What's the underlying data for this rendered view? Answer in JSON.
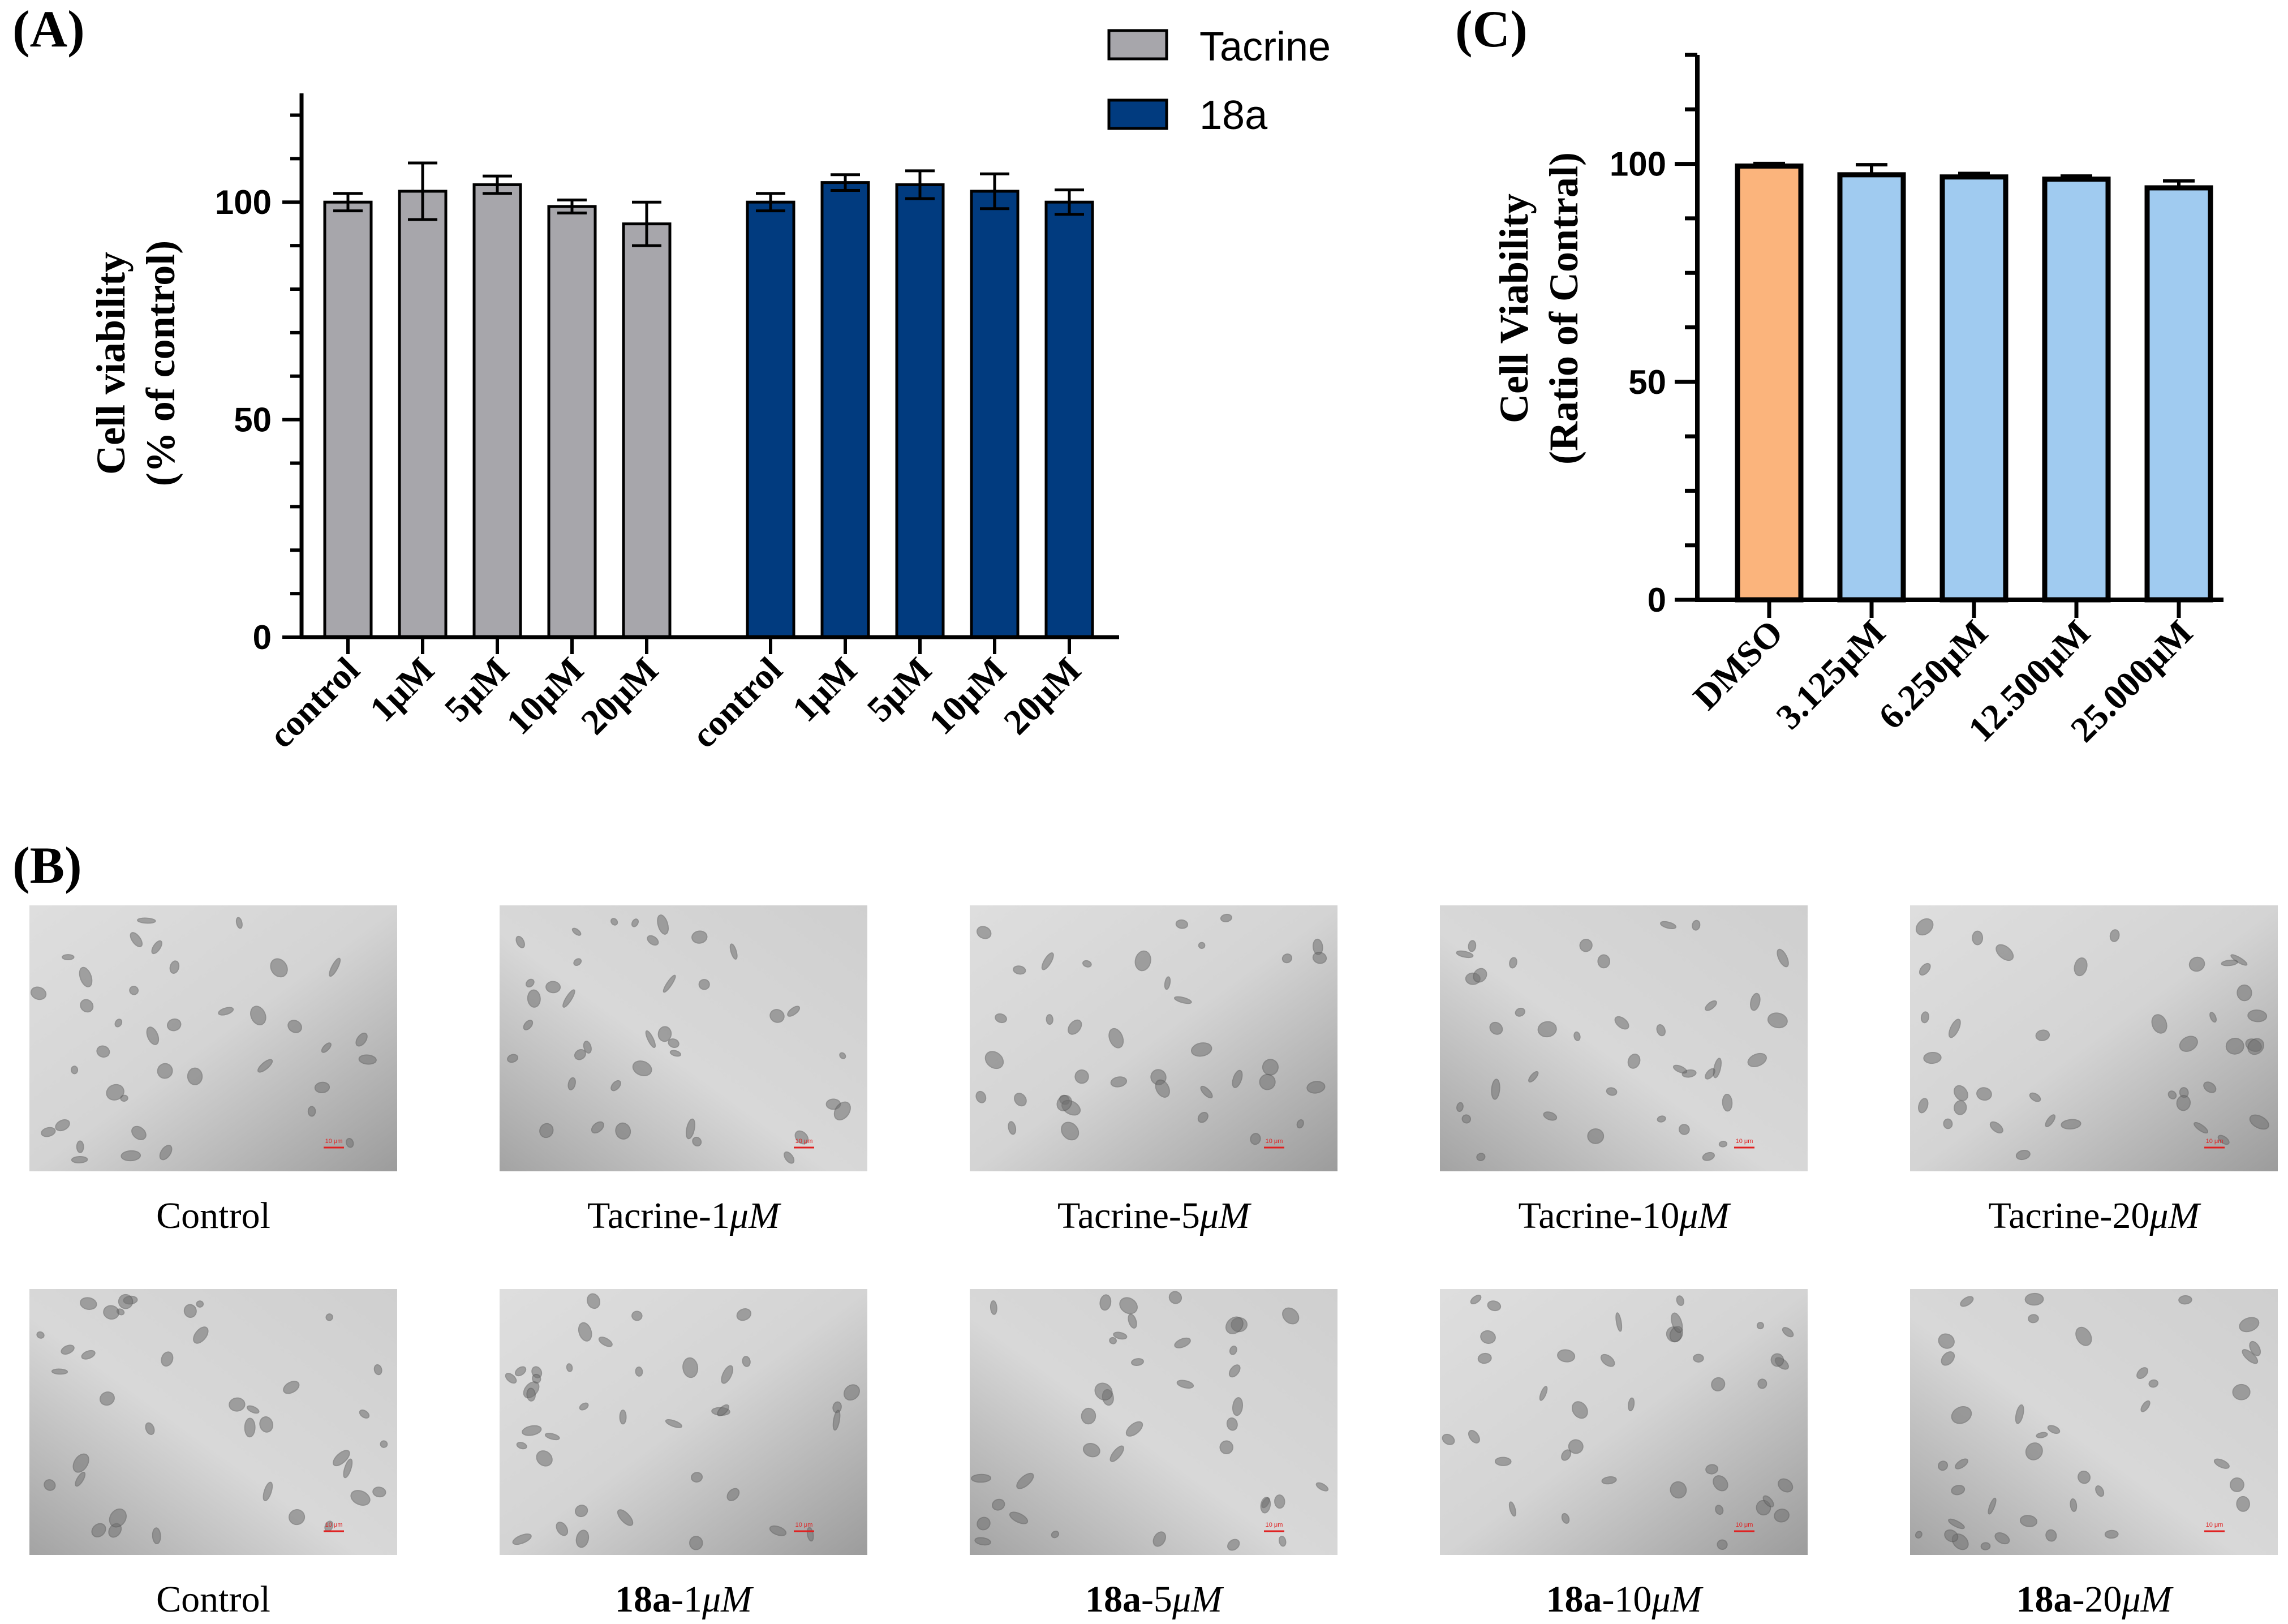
{
  "chart_data": [
    {
      "panel": "(A)",
      "type": "bar",
      "ylabel_line1": "Cell viability",
      "ylabel_line2": "(% of control)",
      "ylim": [
        0,
        125
      ],
      "yticks": [
        "0",
        "50",
        "100"
      ],
      "legend": [
        "Tacrine",
        "18a"
      ],
      "series": [
        {
          "name": "Tacrine",
          "color": "#a7a6ab",
          "categories": [
            "control",
            "1μM",
            "5μM",
            "10μM",
            "20μM"
          ],
          "values": [
            100,
            102.5,
            104,
            99,
            95
          ],
          "errors": [
            2,
            6.5,
            2,
            1.5,
            5
          ]
        },
        {
          "name": "18a",
          "color": "#013b7f",
          "categories": [
            "control",
            "1μM",
            "5μM",
            "10μM",
            "20μM"
          ],
          "values": [
            100,
            104.5,
            104,
            102.5,
            100
          ],
          "errors": [
            2,
            1.8,
            3.2,
            4,
            2.8
          ]
        }
      ]
    },
    {
      "panel": "(C)",
      "type": "bar",
      "ylabel_line1": "Cell Viability",
      "ylabel_line2": "(Ratio of Contral)",
      "ylim": [
        0,
        125
      ],
      "yticks": [
        "0",
        "50",
        "100"
      ],
      "categories": [
        "DMSO",
        "3.125μM",
        "6.250μM",
        "12.500μM",
        "25.000μM"
      ],
      "values": [
        99.5,
        97.5,
        97,
        96.5,
        94.5
      ],
      "errors": [
        0.6,
        2.3,
        0.8,
        0.7,
        1.6
      ],
      "colors": [
        "#fbb47c",
        "#a0cbf0",
        "#a0cbf0",
        "#a0cbf0",
        "#a0cbf0"
      ]
    }
  ],
  "panel_b": {
    "label": "(B)",
    "scale_bar": "10 μm",
    "rows": [
      [
        {
          "prefix": "Control",
          "compound": "",
          "num": "",
          "unit": ""
        },
        {
          "prefix": "Tacrine-",
          "compound": "",
          "num": "1",
          "unit": "μM"
        },
        {
          "prefix": "Tacrine-",
          "compound": "",
          "num": "5",
          "unit": "μM"
        },
        {
          "prefix": "Tacrine-",
          "compound": "",
          "num": "10",
          "unit": "μM"
        },
        {
          "prefix": "Tacrine-",
          "compound": "",
          "num": "20",
          "unit": "μM"
        }
      ],
      [
        {
          "prefix": "Control",
          "compound": "",
          "num": "",
          "unit": ""
        },
        {
          "prefix": "",
          "compound": "18a",
          "num": "-1",
          "unit": "μM"
        },
        {
          "prefix": "",
          "compound": "18a",
          "num": "-5",
          "unit": "μM"
        },
        {
          "prefix": "",
          "compound": "18a",
          "num": "-10",
          "unit": "μM"
        },
        {
          "prefix": "",
          "compound": "18a",
          "num": "-20",
          "unit": "μM"
        }
      ]
    ]
  }
}
